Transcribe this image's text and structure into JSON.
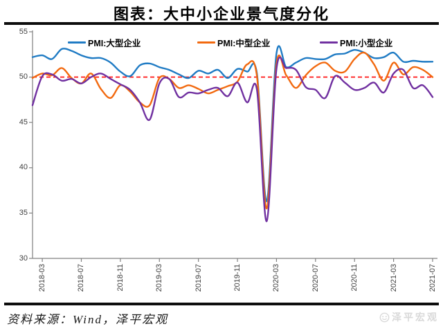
{
  "page": {
    "title": "图表：大中小企业景气度分化",
    "source_note": "资料来源：Wind，泽平宏观",
    "watermark": "泽平宏观"
  },
  "chart_data": {
    "type": "line",
    "title": "图表：大中小企业景气度分化",
    "smoothed": true,
    "grid": false,
    "legend_position": "top",
    "ylim": [
      30,
      55
    ],
    "y_ticks": [
      55,
      50,
      45,
      40,
      35,
      30
    ],
    "x_tick_labels": [
      "2018-03",
      "2018-07",
      "2018-11",
      "2019-03",
      "2019-07",
      "2019-11",
      "2020-03",
      "2020-07",
      "2020-11",
      "2021-03",
      "2021-07"
    ],
    "x_tick_indices": [
      1,
      5,
      9,
      13,
      17,
      21,
      25,
      29,
      33,
      37,
      41
    ],
    "reference_line": {
      "value": 50,
      "color": "#FF0000",
      "style": "dashed"
    },
    "categories": [
      "2018-02",
      "2018-03",
      "2018-04",
      "2018-05",
      "2018-06",
      "2018-07",
      "2018-08",
      "2018-09",
      "2018-10",
      "2018-11",
      "2018-12",
      "2019-01",
      "2019-02",
      "2019-03",
      "2019-04",
      "2019-05",
      "2019-06",
      "2019-07",
      "2019-08",
      "2019-09",
      "2019-10",
      "2019-11",
      "2019-12",
      "2020-01",
      "2020-02",
      "2020-03",
      "2020-04",
      "2020-05",
      "2020-06",
      "2020-07",
      "2020-08",
      "2020-09",
      "2020-10",
      "2020-11",
      "2020-12",
      "2021-01",
      "2021-02",
      "2021-03",
      "2021-04",
      "2021-05",
      "2021-06",
      "2021-07"
    ],
    "series": [
      {
        "name": "PMI:大型企业",
        "color": "#1F7BC4",
        "values": [
          52.2,
          52.4,
          52.0,
          53.1,
          52.9,
          52.4,
          52.1,
          52.1,
          51.6,
          50.6,
          50.1,
          51.3,
          51.5,
          51.1,
          50.8,
          50.3,
          49.9,
          50.7,
          50.4,
          50.8,
          49.9,
          50.9,
          50.6,
          50.4,
          36.3,
          52.6,
          51.1,
          51.6,
          52.1,
          52.0,
          52.0,
          52.5,
          52.6,
          53.0,
          52.7,
          52.1,
          52.2,
          52.7,
          51.7,
          51.8,
          51.7,
          51.7
        ]
      },
      {
        "name": "PMI:中型企业",
        "color": "#F2690F",
        "values": [
          49.9,
          50.4,
          50.2,
          51.0,
          49.9,
          49.3,
          50.4,
          48.7,
          47.7,
          49.1,
          48.4,
          47.2,
          46.9,
          49.9,
          49.8,
          48.8,
          49.1,
          48.7,
          48.2,
          48.6,
          49.0,
          49.5,
          51.4,
          50.1,
          35.5,
          51.5,
          50.2,
          48.8,
          50.2,
          51.2,
          51.6,
          50.7,
          50.6,
          52.0,
          52.7,
          51.4,
          49.6,
          51.6,
          50.3,
          51.1,
          50.8,
          50.0
        ]
      },
      {
        "name": "PMI:小型企业",
        "color": "#7030A0",
        "values": [
          46.9,
          50.1,
          50.3,
          49.6,
          49.8,
          49.3,
          50.0,
          50.4,
          49.8,
          49.2,
          48.6,
          47.2,
          45.3,
          49.3,
          49.8,
          47.8,
          48.3,
          48.2,
          48.6,
          48.8,
          47.9,
          49.4,
          47.2,
          48.6,
          34.1,
          50.9,
          51.0,
          50.8,
          48.9,
          48.6,
          47.7,
          50.1,
          49.4,
          48.6,
          48.8,
          49.4,
          48.3,
          50.4,
          50.8,
          48.8,
          49.1,
          47.8
        ]
      }
    ],
    "colors": {
      "axis": "#808080",
      "tick_label": "#3f3f3f"
    }
  }
}
